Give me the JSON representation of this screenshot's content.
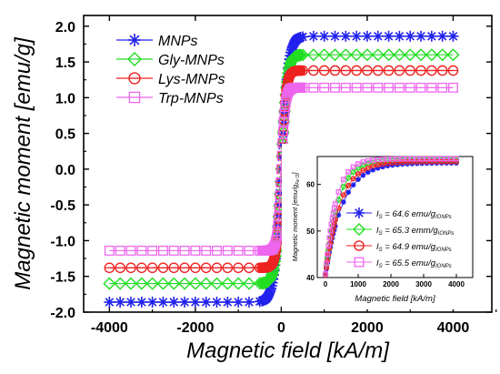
{
  "chart_data": [
    {
      "type": "line",
      "xlabel": "Magnetic field [kA/m]",
      "ylabel": "Magnetic moment [emu/g]",
      "xlim": [
        -4600,
        4900
      ],
      "ylim": [
        -2.0,
        2.15
      ],
      "xticks": [
        "-4000",
        "-2000",
        "0",
        "2000",
        "4000"
      ],
      "yticks": [
        "-2.0",
        "-1.5",
        "-1.0",
        "-0.5",
        "0.0",
        "0.5",
        "1.0",
        "1.5",
        "2.0"
      ],
      "legend_position": "top-left",
      "series": [
        {
          "name": "MNPs",
          "color": "#2222ee",
          "marker": "asterisk",
          "ms": 1.86
        },
        {
          "name": "Gly-MNPs",
          "color": "#22dd22",
          "marker": "diamond",
          "ms": 1.6
        },
        {
          "name": "Lys-MNPs",
          "color": "#ee2222",
          "marker": "circle",
          "ms": 1.38
        },
        {
          "name": "Trp-MNPs",
          "color": "#ee66ee",
          "marker": "square",
          "ms": 1.14
        }
      ]
    },
    {
      "type": "line",
      "xlabel": "Magnetic field [kA/m]",
      "ylabel": "Magnetic moment [emu/g",
      "ylabel_sub": "Fe O",
      "xlim": [
        -250,
        4500
      ],
      "ylim": [
        40,
        66
      ],
      "xticks": [
        "0",
        "1000",
        "2000",
        "3000",
        "4000"
      ],
      "yticks": [
        "40",
        "50",
        "60"
      ],
      "legend_position": "bottom-left",
      "series": [
        {
          "label_pre": "I",
          "label_sub": "S",
          "label_mid": " = 64.6 emu/g",
          "label_sub2": "IONPs",
          "color": "#2222ee",
          "marker": "asterisk",
          "ms": 64.6
        },
        {
          "label_pre": "I",
          "label_sub": "S",
          "label_mid": " = 65.3 emm/g",
          "label_sub2": "IONPs",
          "color": "#22dd22",
          "marker": "diamond",
          "ms": 65.3
        },
        {
          "label_pre": "I",
          "label_sub": "S",
          "label_mid": " = 64.9 emu/g",
          "label_sub2": "IONPs",
          "color": "#ee2222",
          "marker": "circle",
          "ms": 64.9
        },
        {
          "label_pre": "I",
          "label_sub": "S",
          "label_mid": " = 65.5 emu/g",
          "label_sub2": "IONPs",
          "color": "#ee66ee",
          "marker": "square",
          "ms": 65.5
        }
      ]
    }
  ]
}
